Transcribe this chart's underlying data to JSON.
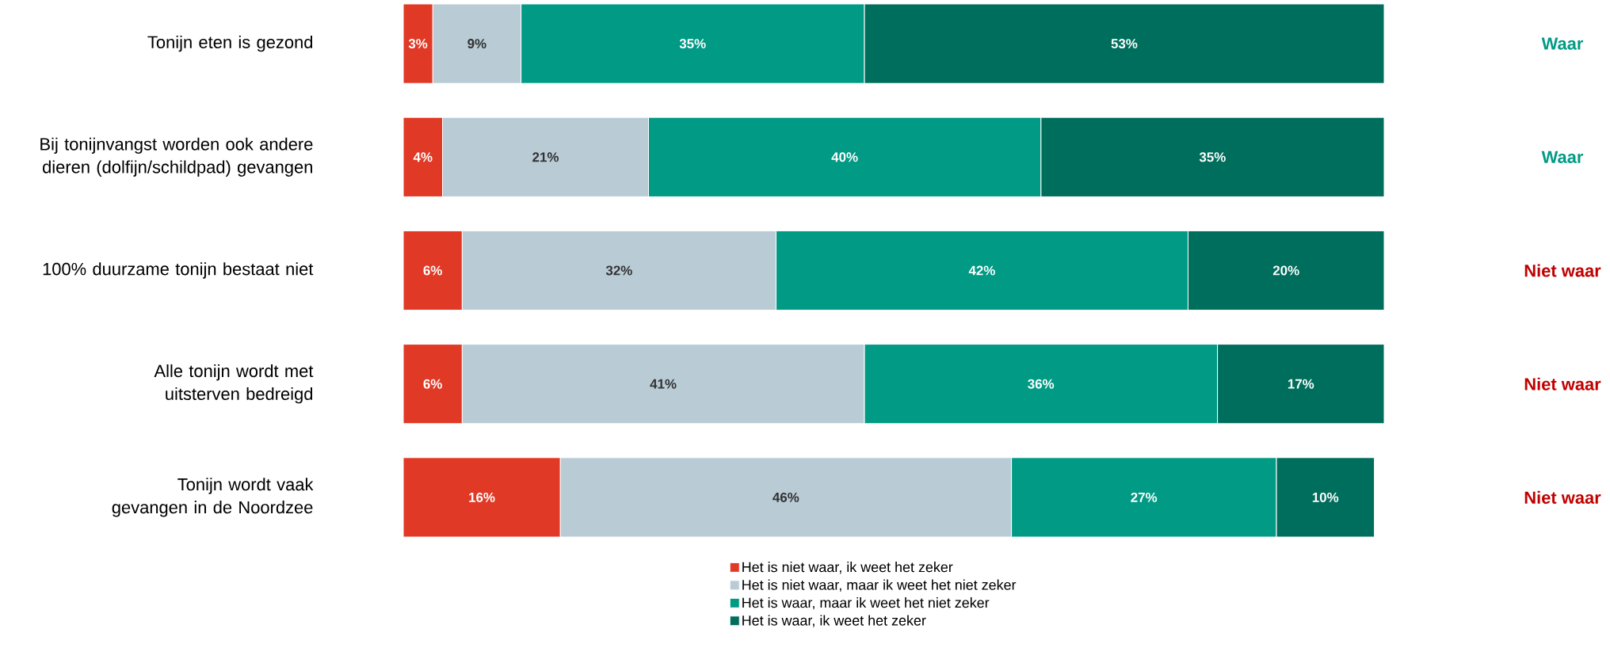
{
  "chart_data": {
    "type": "bar",
    "orientation": "horizontal",
    "stacked": true,
    "categories": [
      "Tonijn eten is gezond",
      "Bij tonijnvangst worden ook andere dieren (dolfijn/schildpad) gevangen",
      "100% duurzame tonijn bestaat niet",
      "Alle tonijn wordt met uitsterven bedreigd",
      "Tonijn wordt vaak gevangen in de Noordzee"
    ],
    "series": [
      {
        "name": "Het is niet waar, ik weet het zeker",
        "color": "#e03a26",
        "values": [
          3,
          4,
          6,
          6,
          16
        ],
        "value_labels": [
          "3%",
          "4%",
          "6%",
          "6%",
          "16%"
        ]
      },
      {
        "name": "Het is niet waar, maar ik weet het niet zeker",
        "color": "#b9ccd6",
        "values": [
          9,
          21,
          32,
          41,
          46
        ],
        "value_labels": [
          "9%",
          "21%",
          "32%",
          "41%",
          "46%"
        ]
      },
      {
        "name": "Het is waar, maar ik weet het niet zeker",
        "color": "#009a85",
        "values": [
          35,
          40,
          42,
          36,
          27
        ],
        "value_labels": [
          "35%",
          "40%",
          "42%",
          "36%",
          "27%"
        ]
      },
      {
        "name": "Het is waar, ik weet het zeker",
        "color": "#006e5c",
        "values": [
          53,
          35,
          20,
          17,
          10
        ],
        "value_labels": [
          "53%",
          "35%",
          "20%",
          "17%",
          "10%"
        ]
      }
    ],
    "legend": "bottom",
    "annotations": [
      "Waar",
      "Waar",
      "Niet waar",
      "Niet waar",
      "Niet waar"
    ]
  }
}
